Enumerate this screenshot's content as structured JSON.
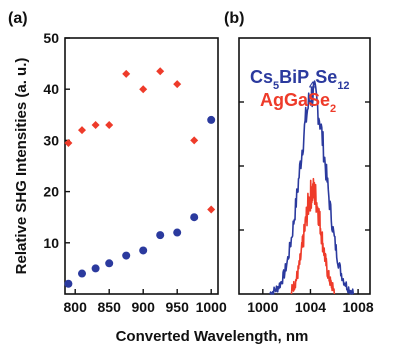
{
  "figure": {
    "panel_a_label": "(a)",
    "panel_b_label": "(b)",
    "ylabel": "Relative SHG Intensities (a. u.)",
    "xlabel": "Converted Wavelength, nm"
  },
  "legend": {
    "series1_base": "Cs",
    "series1_sub1": "5",
    "series1_mid": "BiP",
    "series1_sub2": "4",
    "series1_mid2": "Se",
    "series1_sub3": "12",
    "series2_base": "AgGaSe",
    "series2_sub": "2",
    "series1_color": "#2b3a9e",
    "series2_color": "#ee3b2a"
  },
  "chart_data": [
    {
      "type": "scatter",
      "panel": "(a)",
      "xlim": [
        785,
        1010
      ],
      "ylim": [
        0,
        50
      ],
      "xticks": [
        800,
        850,
        900,
        950,
        1000
      ],
      "yticks": [
        10,
        20,
        30,
        40,
        50
      ],
      "ylabel": "Relative SHG Intensities (a. u.)",
      "xlabel": "Converted Wavelength, nm",
      "grid": false,
      "series": [
        {
          "marker": "diamond",
          "color": "#ee3b2a",
          "x": [
            790,
            810,
            830,
            850,
            875,
            900,
            925,
            950,
            975,
            1000
          ],
          "y": [
            29.5,
            32,
            33,
            33,
            43,
            40,
            43.5,
            41,
            30,
            16.5
          ]
        },
        {
          "marker": "circle",
          "color": "#2b3a9e",
          "x": [
            790,
            810,
            830,
            850,
            875,
            900,
            925,
            950,
            975,
            1000
          ],
          "y": [
            2,
            4,
            5,
            6,
            7.5,
            8.5,
            11.5,
            12,
            15,
            34
          ]
        }
      ]
    },
    {
      "type": "line",
      "panel": "(b)",
      "xlim": [
        998,
        1009
      ],
      "xticks": [
        1000,
        1004,
        1008
      ],
      "grid": false,
      "legend_position": "top",
      "peak_center": 1004.2,
      "series": [
        {
          "name": "Cs5BiP4Se12",
          "color": "#2b3a9e",
          "peak_height": 0.78,
          "halfwidth": 1.35,
          "base_from": 1000.6,
          "base_to": 1007.6
        },
        {
          "name": "AgGaSe2",
          "color": "#ee3b2a",
          "peak_height": 0.4,
          "halfwidth": 0.85,
          "base_from": 1002.4,
          "base_to": 1006.0
        }
      ]
    }
  ]
}
